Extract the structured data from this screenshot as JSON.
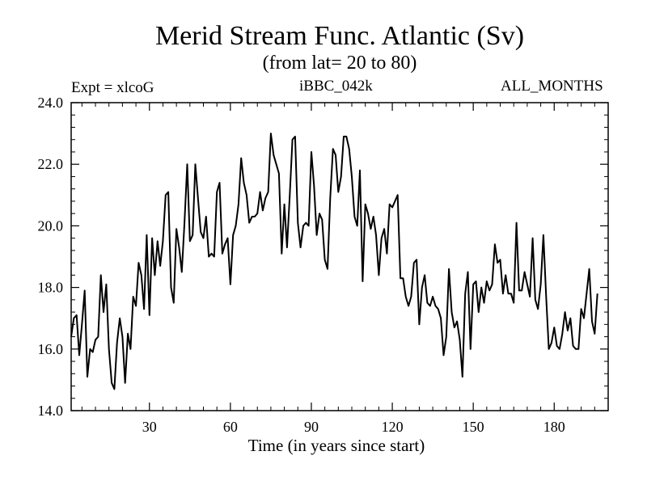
{
  "header": {
    "expt_label": "Expt = xlcoG",
    "run_id": "iBBC_042k",
    "months_label": "ALL_MONTHS"
  },
  "chart_data": {
    "type": "line",
    "title": "Merid Stream Func. Atlantic (Sv)",
    "subtitle": "(from lat= 20 to 80)",
    "xlabel": "Time (in years since start)",
    "ylabel": "",
    "xlim": [
      1,
      200
    ],
    "ylim": [
      14.0,
      24.0
    ],
    "xticks": [
      30,
      60,
      90,
      120,
      150,
      180
    ],
    "xtick_labels": [
      "30",
      "60",
      "90",
      "120",
      "150",
      "180"
    ],
    "yticks": [
      14.0,
      16.0,
      18.0,
      20.0,
      22.0,
      24.0
    ],
    "ytick_labels": [
      "14.0",
      "16.0",
      "18.0",
      "20.0",
      "22.0",
      "24.0"
    ],
    "grid": false,
    "series": [
      {
        "name": "Merid Stream Func. Atlantic",
        "color": "#000000",
        "x_start": 1,
        "x_step": 1,
        "values": [
          16.4,
          17.0,
          17.1,
          15.8,
          16.8,
          17.9,
          15.1,
          16.0,
          15.9,
          16.3,
          16.4,
          18.4,
          17.2,
          18.1,
          16.0,
          14.9,
          14.7,
          16.2,
          17.0,
          16.4,
          14.9,
          16.5,
          16.0,
          17.7,
          17.4,
          18.8,
          18.4,
          17.3,
          19.7,
          17.1,
          19.6,
          18.4,
          19.5,
          18.7,
          19.5,
          21.0,
          21.1,
          18.0,
          17.5,
          19.9,
          19.3,
          18.5,
          20.1,
          22.0,
          19.5,
          19.7,
          22.0,
          20.9,
          19.8,
          19.6,
          20.3,
          19.0,
          19.1,
          19.0,
          21.1,
          21.4,
          19.1,
          19.4,
          19.6,
          18.1,
          19.7,
          20.0,
          20.7,
          22.2,
          21.4,
          21.0,
          20.1,
          20.3,
          20.3,
          20.4,
          21.1,
          20.5,
          20.9,
          21.1,
          23.0,
          22.3,
          22.0,
          21.7,
          19.1,
          20.7,
          19.3,
          21.0,
          22.8,
          22.9,
          20.1,
          19.3,
          20.0,
          20.1,
          20.0,
          22.4,
          21.3,
          19.7,
          20.4,
          20.2,
          18.9,
          18.6,
          20.9,
          22.5,
          22.3,
          21.1,
          21.6,
          22.9,
          22.9,
          22.5,
          21.6,
          20.3,
          20.0,
          21.8,
          18.2,
          20.7,
          20.4,
          19.9,
          20.3,
          19.7,
          18.4,
          19.6,
          19.9,
          19.1,
          20.7,
          20.6,
          20.8,
          21.0,
          18.3,
          18.3,
          17.7,
          17.4,
          17.7,
          18.8,
          18.9,
          16.8,
          18.0,
          18.4,
          17.5,
          17.4,
          17.7,
          17.4,
          17.3,
          17.0,
          15.8,
          16.4,
          18.6,
          17.2,
          16.7,
          16.9,
          16.3,
          15.1,
          17.8,
          18.5,
          16.0,
          18.1,
          18.2,
          17.2,
          18.0,
          17.5,
          18.2,
          17.9,
          18.1,
          19.4,
          18.8,
          18.9,
          17.8,
          18.4,
          17.8,
          17.8,
          17.5,
          20.1,
          17.9,
          17.9,
          18.5,
          18.1,
          17.7,
          19.6,
          17.6,
          17.3,
          18.1,
          19.7,
          17.7,
          16.0,
          16.2,
          16.7,
          16.1,
          16.0,
          16.5,
          17.2,
          16.6,
          17.0,
          16.1,
          16.0,
          16.0,
          17.3,
          17.0,
          17.8,
          18.6,
          16.9,
          16.5,
          17.8
        ]
      }
    ]
  }
}
